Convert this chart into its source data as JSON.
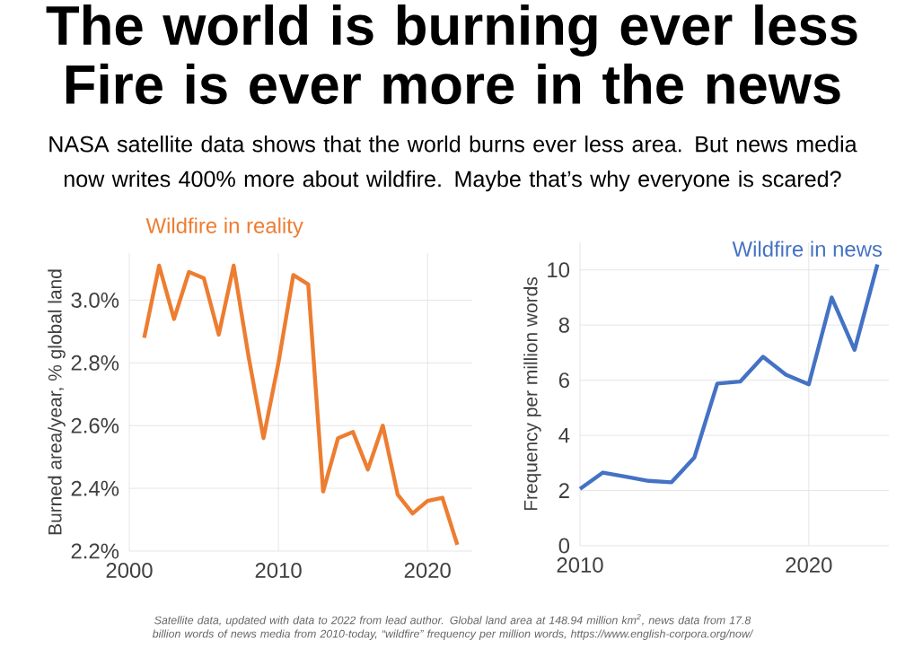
{
  "chart_data": [
    {
      "type": "other",
      "title": "The world is burning ever less\nFire is ever more in the news",
      "subtitle": "NASA satellite data shows that the world burns ever less area. But news media now writes 400% more about wildfire. Maybe that’s why everyone is scared?",
      "annotations": [
        "Satellite data, updated with data to 2022 from lead author. Global land area at 148.94 million km$^{2}$, news data from 17.8 billion words of news media from 2010-today, “wildfire” frequency per million words, https://www.english-corpora.org/now/"
      ]
    },
    {
      "type": "line",
      "title": "Wildfire in reality",
      "ylabel": "Burned area/year, % global land",
      "grid": true,
      "marker": "none",
      "xlim": [
        2000,
        2023
      ],
      "ylim": [
        2.2,
        3.15
      ],
      "xticks": [
        2000,
        2010,
        2020
      ],
      "yticks": [
        {
          "value": 2.2,
          "label": "2.2%"
        },
        {
          "value": 2.4,
          "label": "2.4%"
        },
        {
          "value": 2.6,
          "label": "2.6%"
        },
        {
          "value": 2.8,
          "label": "2.8%"
        },
        {
          "value": 3.0,
          "label": "3.0%"
        }
      ],
      "x": [
        2001,
        2002,
        2003,
        2004,
        2005,
        2006,
        2007,
        2008,
        2009,
        2010,
        2011,
        2012,
        2013,
        2014,
        2015,
        2016,
        2017,
        2018,
        2019,
        2020,
        2021,
        2022
      ],
      "series": [
        {
          "color": "#ed7d31",
          "values": [
            2.88,
            3.11,
            2.94,
            3.09,
            3.07,
            2.89,
            3.11,
            2.82,
            2.56,
            2.8,
            3.08,
            3.05,
            2.39,
            2.56,
            2.58,
            2.46,
            2.6,
            2.38,
            2.32,
            2.36,
            2.37,
            2.22
          ]
        }
      ]
    },
    {
      "type": "line",
      "title": "Wildfire in news",
      "ylabel": "Frequency per million words",
      "grid": true,
      "marker": "none",
      "xlim": [
        2010,
        2023.5
      ],
      "ylim": [
        0,
        11
      ],
      "xticks": [
        2010,
        2020
      ],
      "yticks": [
        0,
        2,
        4,
        6,
        8,
        10
      ],
      "x": [
        2010,
        2011,
        2012,
        2013,
        2014,
        2015,
        2016,
        2017,
        2018,
        2019,
        2020,
        2021,
        2022,
        2023
      ],
      "series": [
        {
          "color": "#4472c4",
          "values": [
            2.06,
            2.65,
            2.5,
            2.35,
            2.3,
            3.2,
            5.88,
            5.95,
            6.85,
            6.2,
            5.85,
            9.0,
            7.1,
            10.2
          ]
        }
      ]
    }
  ]
}
